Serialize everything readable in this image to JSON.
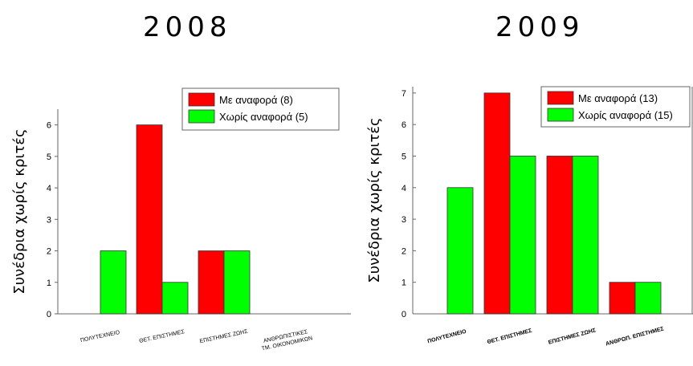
{
  "chart_data": [
    {
      "type": "bar",
      "title": "2008",
      "ylabel": "Συνέδρια χωρίς κριτές",
      "ylim": [
        0,
        6.5
      ],
      "yticks": [
        0,
        1,
        2,
        3,
        4,
        5,
        6
      ],
      "categories": [
        [
          "ΠΟΛΥΤΕΧΝΕΙΟ"
        ],
        [
          "ΘΕΤ. ΕΠΙΣΤΗΜΕΣ"
        ],
        [
          "ΕΠΙΣΤΗΜΕΣ ΖΩΗΣ"
        ],
        [
          "ΑΝΘΡΩΠΙΣΤΙΚΕΣ",
          "ΤΜ. ΟΙΚΟΝΟΜΙΚΩΝ"
        ]
      ],
      "series": [
        {
          "name": "Με αναφορά (8)",
          "color": "#ff0000",
          "values": [
            0,
            6,
            2,
            0
          ]
        },
        {
          "name": "Χωρίς αναφορά (5)",
          "color": "#00ff00",
          "values": [
            2,
            1,
            2,
            0
          ]
        }
      ],
      "legend_position": "top-right"
    },
    {
      "type": "bar",
      "title": "2009",
      "ylabel": "Συνέδρια χωρίς κριτές",
      "ylim": [
        0,
        7.2
      ],
      "yticks": [
        0,
        1,
        2,
        3,
        4,
        5,
        6,
        7
      ],
      "categories": [
        [
          "ΠΟΛΥΤΕΧΝΕΙΟ"
        ],
        [
          "ΘΕΤ. ΕΠΙΣΤΗΜΕΣ"
        ],
        [
          "ΕΠΙΣΤΗΜΕΣ ΖΩΗΣ"
        ],
        [
          "ΑΝΘΡΩΠ. ΕΠΙΣΤΗΜΕΣ"
        ]
      ],
      "series": [
        {
          "name": "Με αναφορά (13)",
          "color": "#ff0000",
          "values": [
            0,
            7,
            5,
            1
          ]
        },
        {
          "name": "Χωρίς αναφορά (15)",
          "color": "#00ff00",
          "values": [
            4,
            5,
            5,
            1
          ]
        }
      ],
      "legend_position": "top-right"
    }
  ]
}
